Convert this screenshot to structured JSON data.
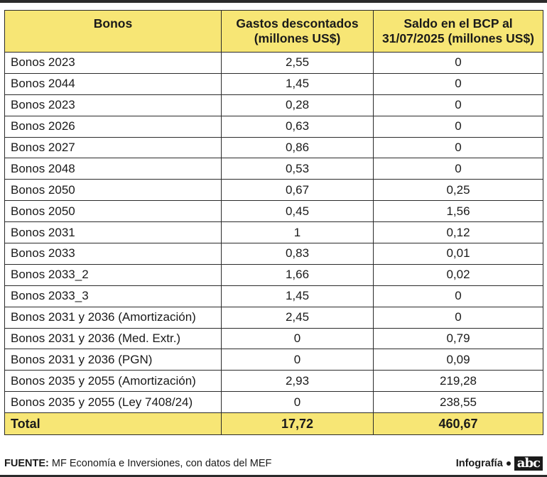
{
  "table": {
    "headers": [
      "Bonos",
      "Gastos descontados (millones US$)",
      "Saldo en el BCP al 31/07/2025 (millones US$)"
    ],
    "rows": [
      [
        "Bonos 2023",
        "2,55",
        "0"
      ],
      [
        "Bonos 2044",
        "1,45",
        "0"
      ],
      [
        "Bonos 2023",
        "0,28",
        "0"
      ],
      [
        "Bonos 2026",
        "0,63",
        "0"
      ],
      [
        "Bonos 2027",
        "0,86",
        "0"
      ],
      [
        "Bonos 2048",
        "0,53",
        "0"
      ],
      [
        "Bonos 2050",
        "0,67",
        "0,25"
      ],
      [
        "Bonos 2050",
        "0,45",
        "1,56"
      ],
      [
        "Bonos 2031",
        "1",
        "0,12"
      ],
      [
        "Bonos 2033",
        "0,83",
        "0,01"
      ],
      [
        "Bonos 2033_2",
        "1,66",
        "0,02"
      ],
      [
        "Bonos 2033_3",
        "1,45",
        "0"
      ],
      [
        "Bonos 2031 y 2036 (Amortización)",
        "2,45",
        "0"
      ],
      [
        "Bonos 2031 y 2036 (Med. Extr.)",
        "0",
        "0,79"
      ],
      [
        "Bonos 2031 y 2036 (PGN)",
        "0",
        "0,09"
      ],
      [
        "Bonos 2035 y 2055 (Amortización)",
        "2,93",
        "219,28"
      ],
      [
        "Bonos 2035 y 2055 (Ley 7408/24)",
        "0",
        "238,55"
      ]
    ],
    "total": [
      "Total",
      "17,72",
      "460,67"
    ]
  },
  "footer": {
    "source_label": "FUENTE:",
    "source_text": "MF Economía e Inversiones, con datos del MEF",
    "credit": "Infografía",
    "logo": "abc"
  },
  "colors": {
    "header_bg": "#f7e675",
    "border": "#2a2a2a"
  }
}
